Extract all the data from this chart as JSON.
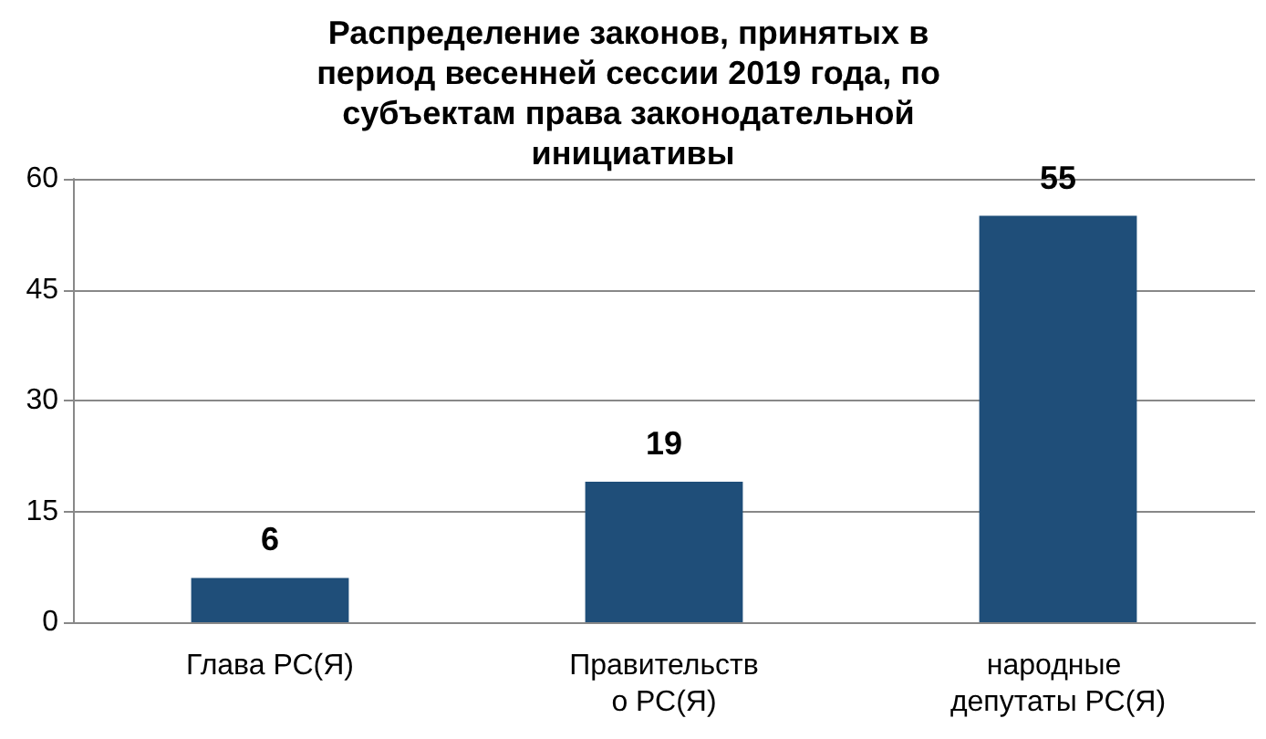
{
  "chart_data": {
    "type": "bar",
    "title": "Распределение законов, принятых в период весенней сессии 2019 года, по субъектам права законодательной инициативы",
    "categories": [
      "Глава РС(Я)",
      "Правительство РС(Я)",
      "народные депутаты РС(Я)"
    ],
    "values": [
      6,
      19,
      55
    ],
    "color": "#1f4e79",
    "ylim": [
      0,
      60
    ],
    "yticks": [
      0,
      15,
      30,
      45,
      60
    ],
    "grid": "y",
    "data_labels": true
  }
}
